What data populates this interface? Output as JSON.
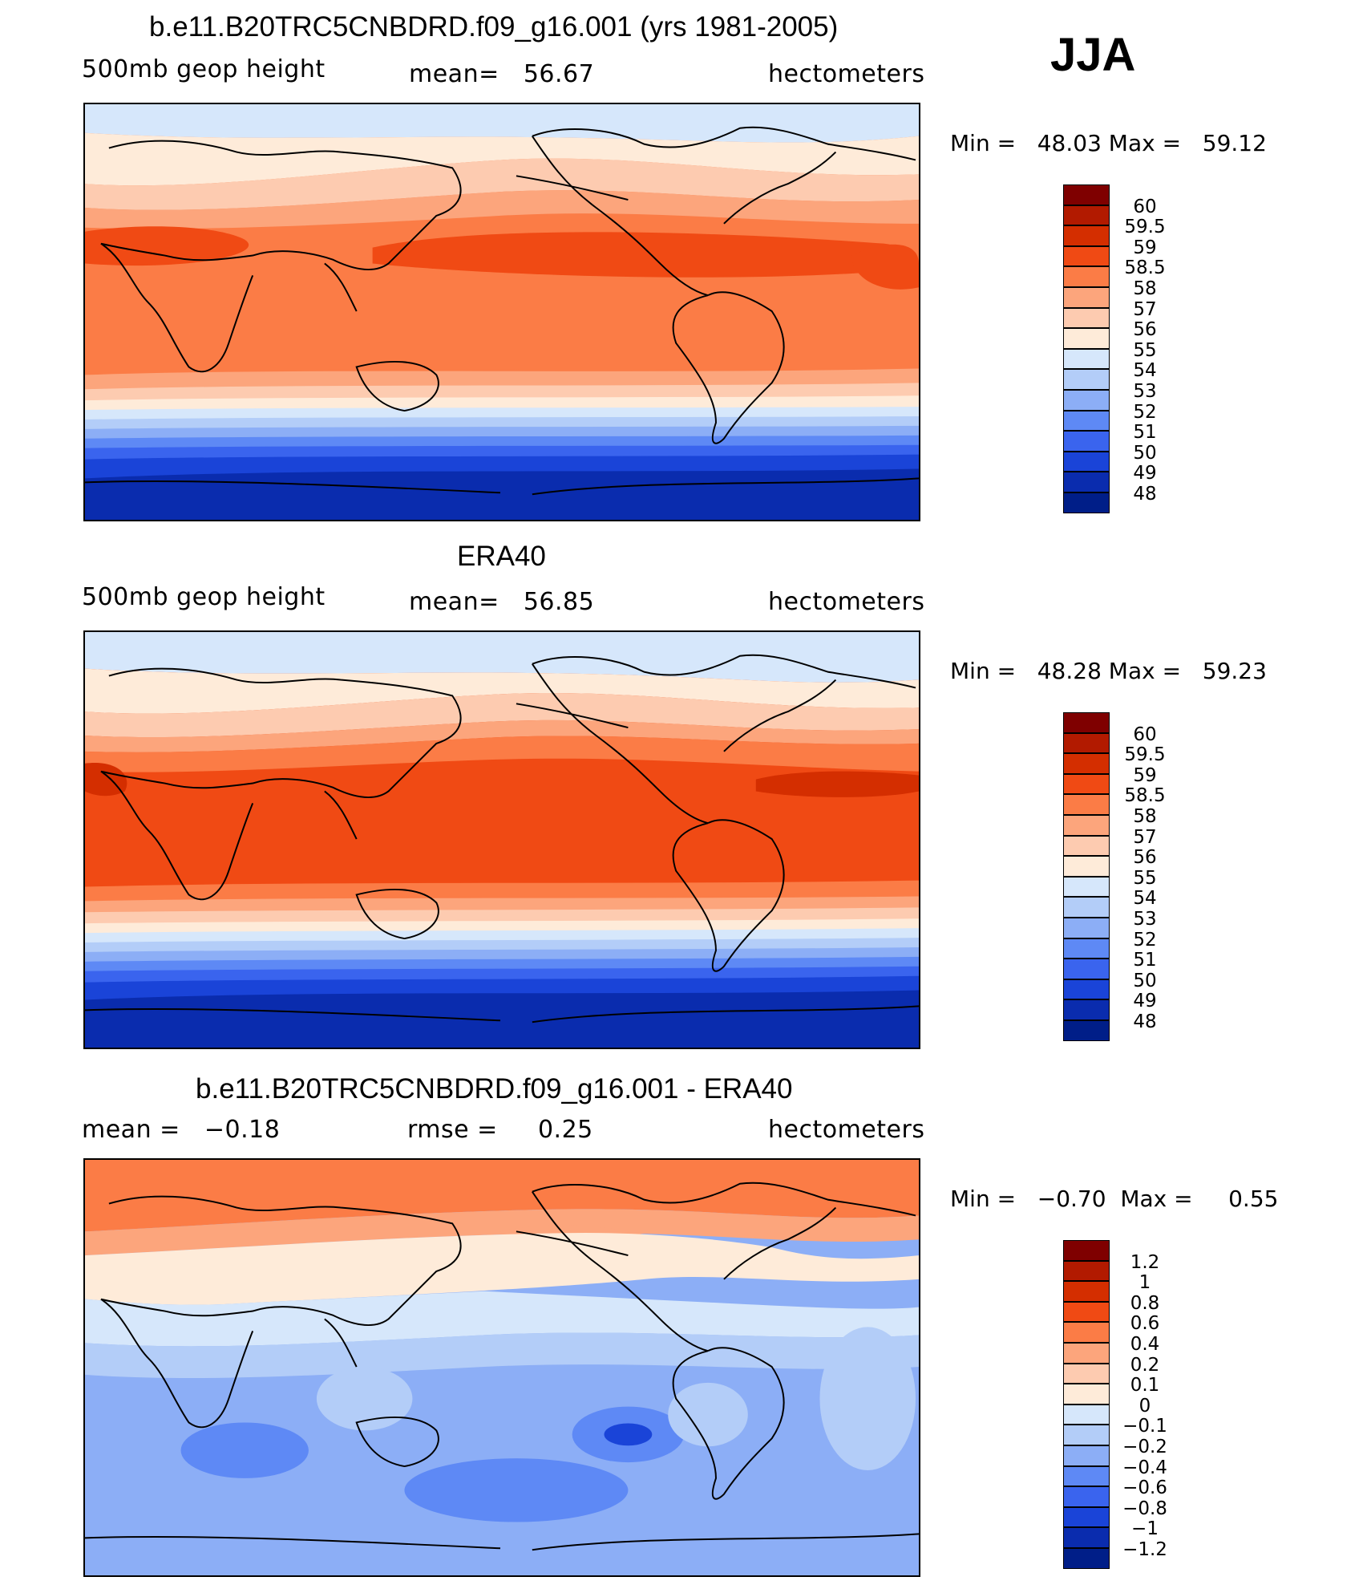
{
  "season": "JJA",
  "panels": [
    {
      "id": "model",
      "title": "b.e11.B20TRC5CNBDRD.f09_g16.001 (yrs 1981-2005)",
      "left": "500mb geop height",
      "center": "mean=   56.67",
      "right": "hectometers",
      "minmax": "Min =   48.03 Max =   59.12",
      "colorbar_labels": [
        "60",
        "59.5",
        "59",
        "58.5",
        "58",
        "57",
        "56",
        "55",
        "54",
        "53",
        "52",
        "51",
        "50",
        "49",
        "48"
      ],
      "colorbar_colors": [
        "#7f0000",
        "#b21a00",
        "#d42e00",
        "#f04a14",
        "#fb7c46",
        "#fca57c",
        "#fdcbb0",
        "#feebd9",
        "#d6e7fb",
        "#b3cdf8",
        "#8caef6",
        "#5e89f5",
        "#3a64ee",
        "#1a44d8",
        "#0a2cae",
        "#001e88"
      ]
    },
    {
      "id": "obs",
      "title": "ERA40",
      "left": "500mb geop height",
      "center": "mean=   56.85",
      "right": "hectometers",
      "minmax": "Min =   48.28 Max =   59.23",
      "colorbar_labels": [
        "60",
        "59.5",
        "59",
        "58.5",
        "58",
        "57",
        "56",
        "55",
        "54",
        "53",
        "52",
        "51",
        "50",
        "49",
        "48"
      ],
      "colorbar_colors": [
        "#7f0000",
        "#b21a00",
        "#d42e00",
        "#f04a14",
        "#fb7c46",
        "#fca57c",
        "#fdcbb0",
        "#feebd9",
        "#d6e7fb",
        "#b3cdf8",
        "#8caef6",
        "#5e89f5",
        "#3a64ee",
        "#1a44d8",
        "#0a2cae",
        "#001e88"
      ]
    },
    {
      "id": "diff",
      "title": "b.e11.B20TRC5CNBDRD.f09_g16.001 - ERA40",
      "left": "mean =   −0.18",
      "center": "rmse =     0.25",
      "right": "hectometers",
      "minmax": "Min =   −0.70  Max =     0.55",
      "colorbar_labels": [
        "1.2",
        "1",
        "0.8",
        "0.6",
        "0.4",
        "0.2",
        "0.1",
        "0",
        "−0.1",
        "−0.2",
        "−0.4",
        "−0.6",
        "−0.8",
        "−1",
        "−1.2"
      ],
      "colorbar_colors": [
        "#7f0000",
        "#b21a00",
        "#d42e00",
        "#f04a14",
        "#fb7c46",
        "#fca57c",
        "#fdcbb0",
        "#feebd9",
        "#d6e7fb",
        "#b3cdf8",
        "#8caef6",
        "#5e89f5",
        "#3a64ee",
        "#1a44d8",
        "#0a2cae",
        "#001e88"
      ]
    }
  ]
}
